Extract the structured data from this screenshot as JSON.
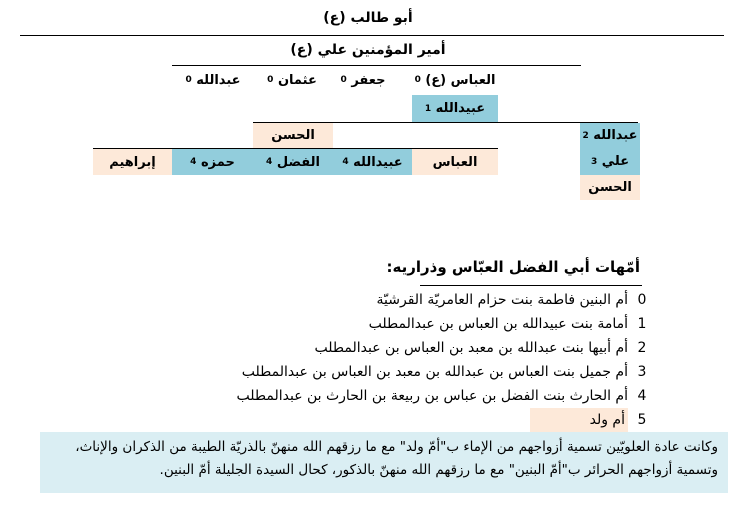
{
  "tree": {
    "root": "أبو طالب (ع)",
    "ali": "أمير المؤمنين علي (ع)",
    "sons": [
      {
        "name": "العباس (ع)",
        "mother": "0"
      },
      {
        "name": "جعفر",
        "mother": "0"
      },
      {
        "name": "عثمان",
        "mother": "0"
      },
      {
        "name": "عبدالله",
        "mother": "0"
      }
    ],
    "ubaidullah": {
      "name": "عبيدالله",
      "mother": "1"
    },
    "hasan_mid": "الحسن",
    "abdullah_right": {
      "name": "عبدالله",
      "mother": "2"
    },
    "ali_right": {
      "name": "علي",
      "mother": "3"
    },
    "hasan_right": "الحسن",
    "grandsons": [
      {
        "name": "العباس",
        "mother": ""
      },
      {
        "name": "عبيدالله",
        "mother": "4"
      },
      {
        "name": "الفضل",
        "mother": "4"
      },
      {
        "name": "حمزه",
        "mother": "4"
      },
      {
        "name": "إبراهيم",
        "mother": ""
      }
    ]
  },
  "mothers": {
    "heading": "أمّهات أبي الفضل العبّاس وذراريه:",
    "items": [
      {
        "num": "0",
        "text": "أم البنين فاطمة بنت حزام العامريّة القرشيّة"
      },
      {
        "num": "1",
        "text": "أمامة بنت عبيدالله بن العباس بن عبدالمطلب"
      },
      {
        "num": "2",
        "text": "أم أبيها بنت عبدالله بن معبد بن العباس بن عبدالمطلب"
      },
      {
        "num": "3",
        "text": "أم جميل بنت العباس بن عبدالله بن معبد بن العباس بن عبدالمطلب"
      },
      {
        "num": "4",
        "text": "أم الحارث بنت الفضل بن عباس بن ربيعة بن الحارث بن عبدالمطلب"
      },
      {
        "num": "5",
        "text": "أم ولد"
      }
    ]
  },
  "note": {
    "line1": "وكانت عادة العلويّين تسمية أزواجهم من الإماء ب\"أمّ ولد\" مع ما رزقهم الله منهنّ بالذريّة الطيبة من الذكران والإناث،",
    "line2": "وتسمية أزواجهم الحرائر ب\"أمّ البنين\" مع ما رزقهم الله منهنّ بالذكور، كحال السيدة الجليلة أمّ البنين."
  },
  "colors": {
    "blue": "#92cddc",
    "peach": "#fde9d9",
    "note_bg": "#daeef3"
  }
}
